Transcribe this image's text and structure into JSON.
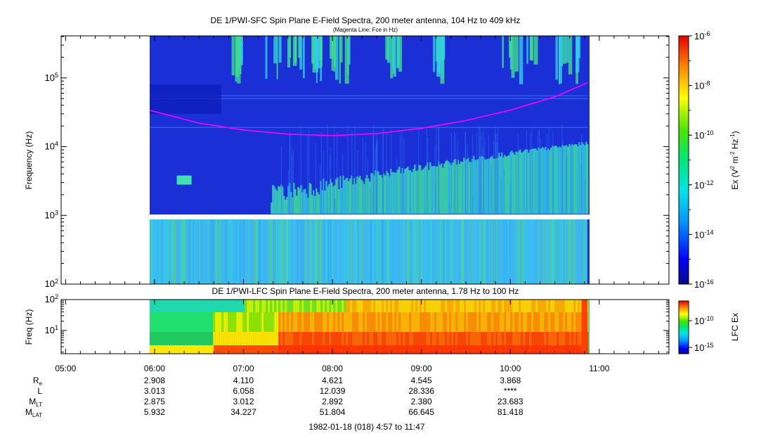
{
  "chart_data": [
    {
      "type": "heatmap",
      "title": "DE 1/PWI-SFC  Spin Plane E-Field Spectra, 200 meter antenna, 104 Hz to 409 kHz",
      "subtitle": "(Magenta Line: Fce in Hz)",
      "ylabel": "Frequency (Hz)",
      "y_scale": "log",
      "ylim": [
        100,
        409000
      ],
      "y_ticks": [
        {
          "base": "10",
          "exp": "2"
        },
        {
          "base": "10",
          "exp": "3"
        },
        {
          "base": "10",
          "exp": "4"
        },
        {
          "base": "10",
          "exp": "5"
        }
      ],
      "x_data_range": [
        "05:54",
        "10:52"
      ],
      "data_gap_hz": [
        950,
        1050
      ],
      "colorbar": {
        "label_parts": [
          "Ex (V",
          "2",
          " m",
          "-2",
          " Hz",
          "-1",
          ")"
        ],
        "scale": "log",
        "range": [
          1e-16,
          1e-06
        ],
        "ticks": [
          {
            "base": "10",
            "exp": "-6"
          },
          {
            "base": "10",
            "exp": "-8"
          },
          {
            "base": "10",
            "exp": "-10"
          },
          {
            "base": "10",
            "exp": "-12"
          },
          {
            "base": "10",
            "exp": "-14"
          },
          {
            "base": "10",
            "exp": "-16"
          }
        ]
      },
      "fce_line": {
        "color": "#ff00ff",
        "points": [
          {
            "t": "05:54",
            "hz": 35000
          },
          {
            "t": "06:30",
            "hz": 22000
          },
          {
            "t": "07:00",
            "hz": 17500
          },
          {
            "t": "07:30",
            "hz": 15200
          },
          {
            "t": "08:00",
            "hz": 14500
          },
          {
            "t": "08:30",
            "hz": 15500
          },
          {
            "t": "09:00",
            "hz": 18500
          },
          {
            "t": "09:30",
            "hz": 24000
          },
          {
            "t": "10:00",
            "hz": 34000
          },
          {
            "t": "10:30",
            "hz": 53000
          },
          {
            "t": "10:52",
            "hz": 85000
          }
        ]
      }
    },
    {
      "type": "heatmap",
      "title": "DE 1/PWI-LFC  Spin Plane E-Field Spectra, 200 meter antenna, 1.78 Hz to 100 Hz",
      "ylabel": "Freq (Hz)",
      "y_scale": "log",
      "ylim": [
        1.78,
        100
      ],
      "y_ticks": [
        {
          "base": "10",
          "exp": "1"
        },
        {
          "base": "10",
          "exp": "2"
        }
      ],
      "x_data_range": [
        "05:54",
        "10:52"
      ],
      "colorbar": {
        "label": "LFC Ex",
        "scale": "log",
        "ticks": [
          {
            "base": "10",
            "exp": "-10"
          },
          {
            "base": "10",
            "exp": "-15"
          }
        ]
      }
    }
  ],
  "time_axis": {
    "ticks": [
      "05:00",
      "06:00",
      "07:00",
      "08:00",
      "09:00",
      "10:00",
      "11:00"
    ],
    "date_label": "1982-01-18 (018) 4:57 to 11:47"
  },
  "ephemeris": {
    "labels": [
      {
        "base": "R",
        "sub": "e"
      },
      {
        "base": "L",
        "sub": ""
      },
      {
        "base": "M",
        "sub": "LT"
      },
      {
        "base": "M",
        "sub": "LAT"
      }
    ],
    "rows": [
      [
        "2.908",
        "4.110",
        "4.621",
        "4.545",
        "3.868"
      ],
      [
        "3.013",
        "6.058",
        "12.039",
        "28.336",
        "****"
      ],
      [
        "2.875",
        "3.012",
        "2.892",
        "2.380",
        "23.683"
      ],
      [
        "5.932",
        "34.227",
        "51.804",
        "66.645",
        "81.418"
      ]
    ]
  }
}
